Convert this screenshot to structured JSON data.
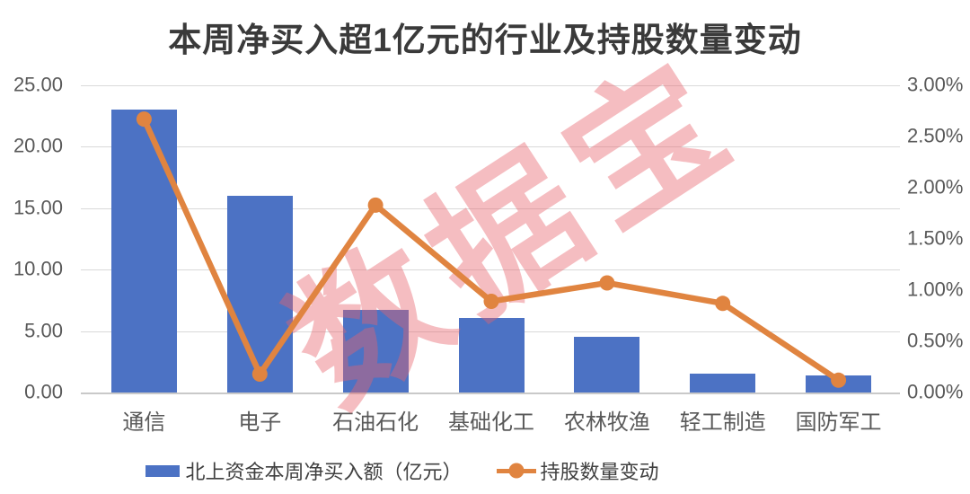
{
  "chart_data": {
    "type": "bar",
    "subtype": "combo-bar-line-dual-axis",
    "title": "本周净买入超1亿元的行业及持股数量变动",
    "categories": [
      "通信",
      "电子",
      "石油石化",
      "基础化工",
      "农林牧渔",
      "轻工制造",
      "国防军工"
    ],
    "series": [
      {
        "name": "北上资金本周净买入额（亿元）",
        "type": "bar",
        "axis": "left",
        "values": [
          23.0,
          16.0,
          6.7,
          6.1,
          4.5,
          1.5,
          1.4
        ]
      },
      {
        "name": "持股数量变动",
        "type": "line",
        "axis": "right",
        "unit": "%",
        "values": [
          2.67,
          0.18,
          1.83,
          0.89,
          1.07,
          0.87,
          0.12
        ]
      }
    ],
    "left_axis": {
      "range": [
        0,
        25
      ],
      "ticks": [
        "25.00",
        "20.00",
        "15.00",
        "10.00",
        "5.00",
        "0.00"
      ]
    },
    "right_axis": {
      "range": [
        0,
        3
      ],
      "ticks": [
        "3.00%",
        "2.50%",
        "2.00%",
        "1.50%",
        "1.00%",
        "0.50%",
        "0.00%"
      ]
    },
    "grid": "horizontal-only",
    "legend_position": "bottom"
  },
  "watermark": {
    "text": "数据宝"
  },
  "colors": {
    "bar_blue": "#4C72C4",
    "line_orange": "#E08440",
    "watermark_pink": "rgba(231,98,107,0.42)",
    "gridline": "#D9D9D9",
    "axis_line": "#C9C9C9",
    "axis_text": "#595959",
    "title_text": "#3A3A3A",
    "legend_text": "#404040"
  }
}
